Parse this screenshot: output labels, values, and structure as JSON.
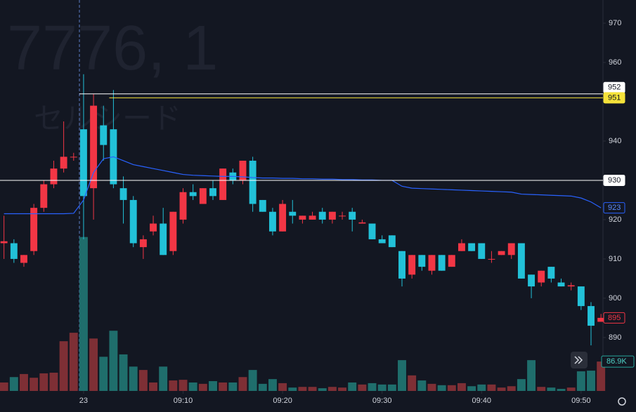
{
  "chart_data": {
    "type": "candlestick",
    "title": "7776, 1",
    "subtitle": "セルシード",
    "x": [
      -8,
      -7,
      -6,
      -5,
      -4,
      -3,
      -2,
      -1,
      0,
      1,
      2,
      3,
      4,
      5,
      6,
      7,
      8,
      9,
      10,
      11,
      12,
      13,
      14,
      15,
      16,
      17,
      18,
      19,
      20,
      21,
      22,
      23,
      24,
      25,
      26,
      27,
      28,
      29,
      30,
      31,
      32,
      33,
      34,
      35,
      36,
      37,
      38,
      39,
      40,
      41,
      42,
      43,
      44,
      45,
      46,
      47,
      48,
      49,
      50,
      51,
      52
    ],
    "open": [
      914,
      914,
      909,
      912,
      923,
      929,
      933,
      936,
      943,
      928,
      944,
      943,
      928,
      925,
      913,
      917,
      919,
      912,
      920,
      927,
      924,
      928,
      925,
      932,
      930,
      935,
      925,
      922,
      917,
      922,
      920,
      920,
      922,
      920,
      921,
      922,
      919,
      919,
      915,
      916,
      912,
      906,
      911,
      907,
      911,
      908,
      912,
      914,
      914,
      910,
      911,
      911,
      914,
      906,
      904,
      908,
      904,
      903,
      903,
      898,
      894
    ],
    "high": [
      921,
      915,
      911,
      924,
      930,
      935,
      945,
      937,
      957,
      952,
      949,
      953,
      931,
      926,
      916,
      921,
      923,
      922,
      928,
      929,
      928,
      930,
      933,
      933,
      935,
      936,
      925,
      923,
      925,
      925,
      921,
      922,
      923,
      922,
      922,
      923,
      920,
      919,
      916,
      916,
      912,
      911,
      911,
      911,
      911,
      911,
      915,
      914,
      914,
      912,
      912,
      914,
      914,
      906,
      907,
      908,
      905,
      904,
      903,
      899,
      896
    ],
    "low": [
      910,
      909,
      908,
      911,
      922,
      928,
      932,
      935,
      915,
      920,
      935,
      928,
      919,
      913,
      910,
      916,
      911,
      911,
      919,
      925,
      924,
      925,
      925,
      929,
      929,
      922,
      922,
      916,
      917,
      919,
      919,
      920,
      919,
      919,
      920,
      917,
      919,
      915,
      914,
      913,
      903,
      905,
      907,
      906,
      907,
      908,
      912,
      912,
      910,
      909,
      911,
      910,
      905,
      900,
      903,
      904,
      903,
      902,
      897,
      888,
      894
    ],
    "close": [
      914.5,
      910,
      911,
      923,
      929,
      933,
      936,
      936,
      926,
      949,
      939,
      929,
      925,
      914,
      915,
      919,
      911,
      922,
      927,
      926,
      928,
      926,
      933,
      930,
      935,
      924,
      922,
      917,
      924,
      921,
      921,
      921,
      920,
      922,
      921,
      920,
      919.3,
      915,
      914,
      913,
      905,
      911,
      908,
      911,
      907,
      911,
      914,
      912,
      910,
      910,
      912,
      914,
      905,
      903,
      907,
      905,
      903,
      903.3,
      898,
      893,
      895
    ],
    "volume": [
      25,
      41,
      50,
      39,
      52,
      54,
      147,
      172,
      455,
      155,
      101,
      178,
      108,
      72,
      62,
      25,
      72,
      31,
      33,
      25,
      21,
      29,
      25,
      25,
      41,
      62,
      21,
      35,
      23,
      10,
      12,
      12,
      8,
      12,
      10,
      25,
      19,
      23,
      19,
      19,
      91,
      46,
      31,
      21,
      17,
      17,
      23,
      14,
      19,
      19,
      10,
      14,
      35,
      91,
      12,
      10,
      6,
      10,
      58,
      60,
      86.9
    ],
    "volume_value_labels": {
      "60": "86.9K"
    },
    "volume_ylim": [
      0,
      500
    ],
    "ma": [
      921.5,
      921.5,
      921.5,
      921.5,
      921.5,
      921.5,
      921.5,
      921.6,
      925,
      932,
      935.5,
      936,
      935,
      934,
      933.5,
      933,
      932.5,
      932,
      931.5,
      931.3,
      931.2,
      931.1,
      931,
      931,
      930.9,
      930.7,
      930.6,
      930.6,
      930.5,
      930.5,
      930.4,
      930.4,
      930.3,
      930.3,
      930.2,
      930.2,
      930.1,
      930.1,
      930,
      930,
      928.5,
      928,
      927.9,
      927.8,
      927.7,
      927.6,
      927.5,
      927.4,
      927.3,
      927.2,
      927.1,
      927,
      926.5,
      926.4,
      926.3,
      926.2,
      926.1,
      926,
      925.5,
      924.5,
      923
    ],
    "ma_color": "#2962ff",
    "up_color": "#f23645",
    "down_color": "#22c1d8",
    "up_volume_color": "#7e2f35",
    "down_volume_color": "#1f6e6c",
    "price_lines": [
      {
        "value": 952,
        "color": "#ffffff",
        "start": 0
      },
      {
        "value": 951,
        "color": "#f5e23a",
        "start": 3
      },
      {
        "value": 930,
        "color": "#ffffff",
        "start": -8
      }
    ],
    "ylim": [
      876.4,
      975.9
    ],
    "yticks": [
      890,
      900,
      910,
      920,
      930,
      940,
      960,
      970
    ],
    "xlim": [
      -8.4,
      52.2
    ],
    "xticks": [
      {
        "value": 0,
        "label": "23"
      },
      {
        "value": 10,
        "label": "09:10"
      },
      {
        "value": 20,
        "label": "09:20"
      },
      {
        "value": 30,
        "label": "09:30"
      },
      {
        "value": 40,
        "label": "09:40"
      },
      {
        "value": 50,
        "label": "09:50"
      }
    ]
  }
}
